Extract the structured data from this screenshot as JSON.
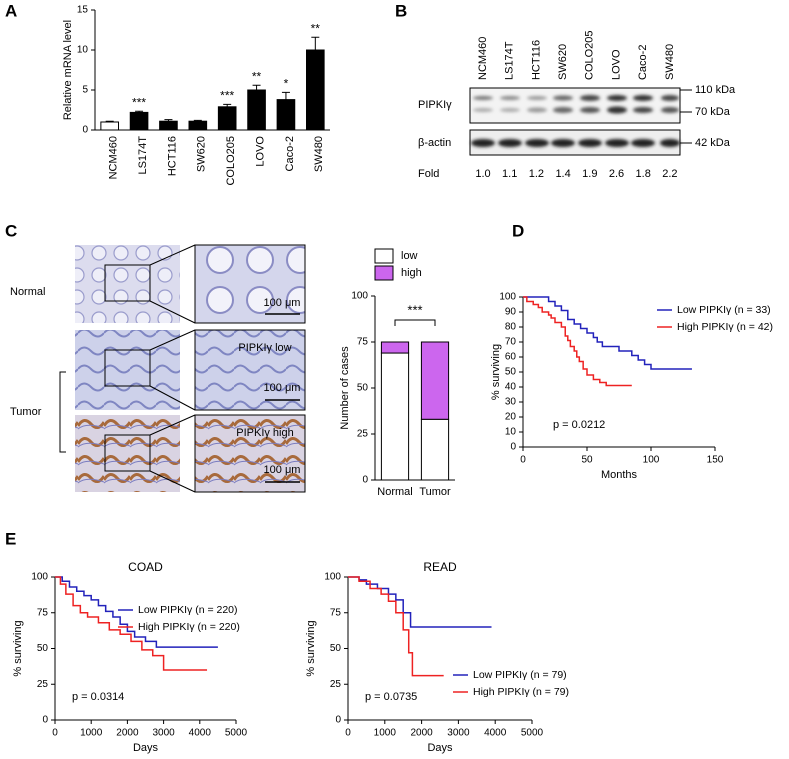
{
  "chart_data": [
    {
      "type": "bar",
      "panel": "A",
      "ylabel": "Relative mRNA level",
      "categories": [
        "NCM460",
        "LS174T",
        "HCT116",
        "SW620",
        "COLO205",
        "LOVO",
        "Caco-2",
        "SW480"
      ],
      "values": [
        1.0,
        2.2,
        1.1,
        1.1,
        2.9,
        5.0,
        3.8,
        10.0
      ],
      "errors": [
        0.1,
        0.15,
        0.2,
        0.1,
        0.3,
        0.6,
        0.9,
        1.6
      ],
      "annotations": [
        null,
        "***",
        null,
        null,
        "***",
        "**",
        "*",
        "**"
      ],
      "colors": [
        "#ffffff",
        "#000000",
        "#000000",
        "#000000",
        "#000000",
        "#000000",
        "#000000",
        "#000000"
      ],
      "ylim": [
        0,
        15
      ],
      "yticks": [
        0,
        5,
        10,
        15
      ]
    },
    {
      "type": "stacked_bar",
      "ylabel": "Number of cases",
      "annotation": "***",
      "categories": [
        "Normal",
        "Tumor"
      ],
      "series": [
        {
          "name": "low",
          "color": "#ffffff",
          "values": [
            69,
            33
          ]
        },
        {
          "name": "high",
          "color": "#cc66ee",
          "values": [
            6,
            42
          ]
        }
      ],
      "ylim": [
        0,
        100
      ],
      "yticks": [
        0,
        25,
        50,
        75,
        100
      ]
    },
    {
      "type": "step",
      "panel": "D",
      "xlabel": "Months",
      "ylabel": "% surviving",
      "annotation": "p = 0.0212",
      "legend": "upper right",
      "xlim": [
        0,
        150
      ],
      "xticks": [
        0,
        50,
        100,
        150
      ],
      "ylim": [
        0,
        100
      ],
      "yticks": [
        0,
        10,
        20,
        30,
        40,
        50,
        60,
        70,
        80,
        90,
        100
      ],
      "series": [
        {
          "name": "Low PIPKIγ (n = 33)",
          "color": "#2222bb",
          "x": [
            0,
            20,
            25,
            30,
            35,
            40,
            45,
            50,
            55,
            58,
            62,
            75,
            85,
            90,
            95,
            100,
            132
          ],
          "values": [
            100,
            97,
            94,
            91,
            85,
            82,
            79,
            76,
            73,
            70,
            67,
            64,
            61,
            58,
            55,
            52,
            52
          ]
        },
        {
          "name": "High PIPKIγ (n = 42)",
          "color": "#ee2222",
          "x": [
            0,
            3,
            8,
            12,
            15,
            20,
            22,
            25,
            30,
            33,
            35,
            37,
            40,
            42,
            44,
            47,
            50,
            55,
            60,
            65,
            85
          ],
          "values": [
            100,
            97,
            95,
            93,
            90,
            88,
            86,
            83,
            80,
            74,
            71,
            67,
            64,
            60,
            57,
            52,
            48,
            45,
            43,
            41,
            41
          ]
        }
      ]
    },
    {
      "type": "step",
      "panel": "E",
      "title": "COAD",
      "xlabel": "Days",
      "ylabel": "% surviving",
      "annotation": "p = 0.0314",
      "legend": "upper right",
      "xlim": [
        0,
        5000
      ],
      "xticks": [
        0,
        1000,
        2000,
        3000,
        4000,
        5000
      ],
      "ylim": [
        0,
        100
      ],
      "yticks": [
        0,
        25,
        50,
        75,
        100
      ],
      "series": [
        {
          "name": "Low PIPKIγ (n = 220)",
          "color": "#2222bb",
          "x": [
            0,
            200,
            400,
            600,
            800,
            1000,
            1200,
            1400,
            1600,
            1800,
            2000,
            2200,
            2500,
            2800,
            4500
          ],
          "values": [
            100,
            97,
            93,
            90,
            87,
            84,
            80,
            76,
            72,
            67,
            62,
            58,
            55,
            51,
            51
          ]
        },
        {
          "name": "High PIPKIγ (n = 220)",
          "color": "#ee2222",
          "x": [
            0,
            150,
            300,
            500,
            700,
            900,
            1200,
            1500,
            1800,
            2100,
            2400,
            2700,
            3000,
            4200
          ],
          "values": [
            100,
            95,
            88,
            80,
            75,
            72,
            68,
            63,
            60,
            55,
            49,
            45,
            35,
            35
          ]
        }
      ]
    },
    {
      "type": "step",
      "title": "READ",
      "xlabel": "Days",
      "ylabel": "% surviving",
      "annotation": "p = 0.0735",
      "legend": "lower right",
      "xlim": [
        0,
        5000
      ],
      "xticks": [
        0,
        1000,
        2000,
        3000,
        4000,
        5000
      ],
      "ylim": [
        0,
        100
      ],
      "yticks": [
        0,
        25,
        50,
        75,
        100
      ],
      "series": [
        {
          "name": "Low PIPKIγ (n = 79)",
          "color": "#2222bb",
          "x": [
            0,
            300,
            500,
            800,
            1100,
            1300,
            1500,
            1700,
            3900
          ],
          "values": [
            100,
            98,
            95,
            92,
            88,
            84,
            75,
            65,
            65
          ]
        },
        {
          "name": "High PIPKIγ (n = 79)",
          "color": "#ee2222",
          "x": [
            0,
            300,
            600,
            900,
            1100,
            1300,
            1500,
            1650,
            1750,
            2600
          ],
          "values": [
            100,
            97,
            92,
            88,
            83,
            75,
            63,
            47,
            31,
            31
          ]
        }
      ]
    }
  ],
  "blot": {
    "panel": "B",
    "lanes": [
      "NCM460",
      "LS174T",
      "HCT116",
      "SW620",
      "COLO205",
      "LOVO",
      "Caco-2",
      "SW480"
    ],
    "rows": [
      "PIPKIγ",
      "β-actin"
    ],
    "fold_label": "Fold",
    "fold": [
      "1.0",
      "1.1",
      "1.2",
      "1.4",
      "1.9",
      "2.6",
      "1.8",
      "2.2"
    ],
    "markers": [
      "110 kDa",
      "70 kDa",
      "42 kDa"
    ]
  },
  "histology": {
    "panel": "C",
    "row_labels": [
      "Normal",
      "Tumor"
    ],
    "insets": [
      "PIPKIγ low",
      "PIPKIγ high"
    ],
    "scale_bar": "100 μm"
  }
}
